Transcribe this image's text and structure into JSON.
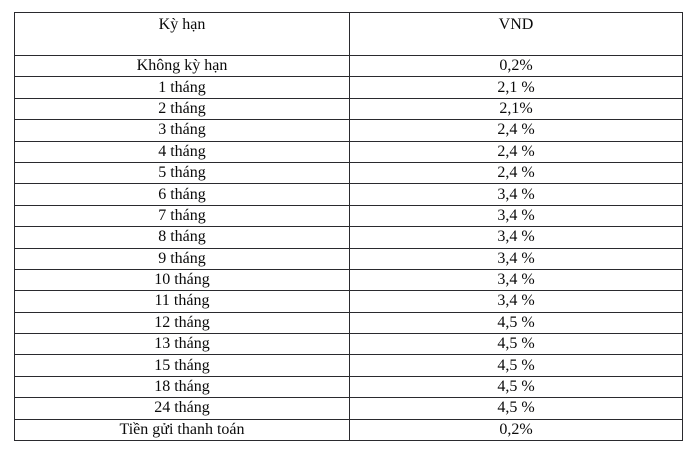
{
  "table": {
    "headers": {
      "term": "Kỳ hạn",
      "rate": "VND"
    },
    "rows": [
      {
        "term": "Không kỳ hạn",
        "rate": "0,2%"
      },
      {
        "term": "1 tháng",
        "rate": "2,1 %"
      },
      {
        "term": "2 tháng",
        "rate": "2,1%"
      },
      {
        "term": "3 tháng",
        "rate": "2,4 %"
      },
      {
        "term": "4 tháng",
        "rate": "2,4 %"
      },
      {
        "term": "5 tháng",
        "rate": "2,4 %"
      },
      {
        "term": "6 tháng",
        "rate": "3,4 %"
      },
      {
        "term": "7 tháng",
        "rate": "3,4 %"
      },
      {
        "term": "8 tháng",
        "rate": "3,4 %"
      },
      {
        "term": "9 tháng",
        "rate": "3,4 %"
      },
      {
        "term": "10 tháng",
        "rate": "3,4 %"
      },
      {
        "term": "11 tháng",
        "rate": "3,4 %"
      },
      {
        "term": "12 tháng",
        "rate": "4,5 %"
      },
      {
        "term": "13 tháng",
        "rate": "4,5 %"
      },
      {
        "term": "15 tháng",
        "rate": "4,5 %"
      },
      {
        "term": "18 tháng",
        "rate": "4,5 %"
      },
      {
        "term": "24 tháng",
        "rate": "4,5 %"
      },
      {
        "term": "Tiền gửi thanh toán",
        "rate": "0,2%"
      }
    ],
    "colors": {
      "border": "#2a2a2e",
      "text": "#0a0a0a",
      "background": "#ffffff"
    }
  }
}
